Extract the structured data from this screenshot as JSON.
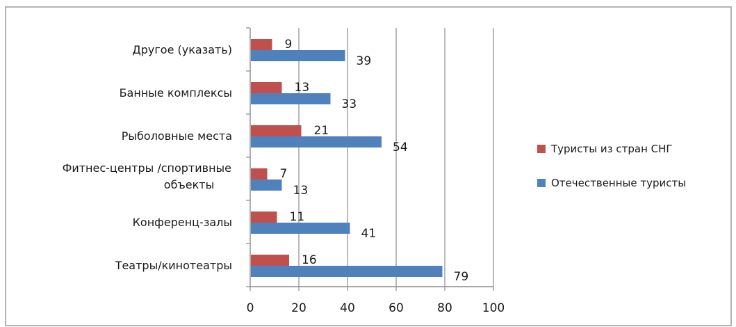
{
  "chart_data": {
    "type": "bar",
    "orientation": "horizontal",
    "categories": [
      "Театры/кинотеатры",
      "Конференц-залы",
      "Фитнес-центры /спортивные объекты",
      "Рыболовные места",
      "Банные комплексы",
      "Другое (указать)"
    ],
    "category_lines": [
      [
        "Театры/кинотеатры"
      ],
      [
        "Конференц-залы"
      ],
      [
        "Фитнес-центры /спортивные",
        "объекты"
      ],
      [
        "Рыболовные места"
      ],
      [
        "Банные комплексы"
      ],
      [
        "Другое (указать)"
      ]
    ],
    "series": [
      {
        "name": "Туристы из стран СНГ",
        "color": "#c0504d",
        "values": [
          16,
          11,
          7,
          21,
          13,
          9
        ]
      },
      {
        "name": "Отечественные туристы",
        "color": "#4f81bd",
        "values": [
          79,
          41,
          13,
          54,
          33,
          39
        ]
      }
    ],
    "xlim": [
      0,
      100
    ],
    "xticks": [
      0,
      20,
      40,
      60,
      80,
      100
    ],
    "grid": "vertical",
    "legend_position": "right",
    "title": "",
    "xlabel": "",
    "ylabel": ""
  }
}
